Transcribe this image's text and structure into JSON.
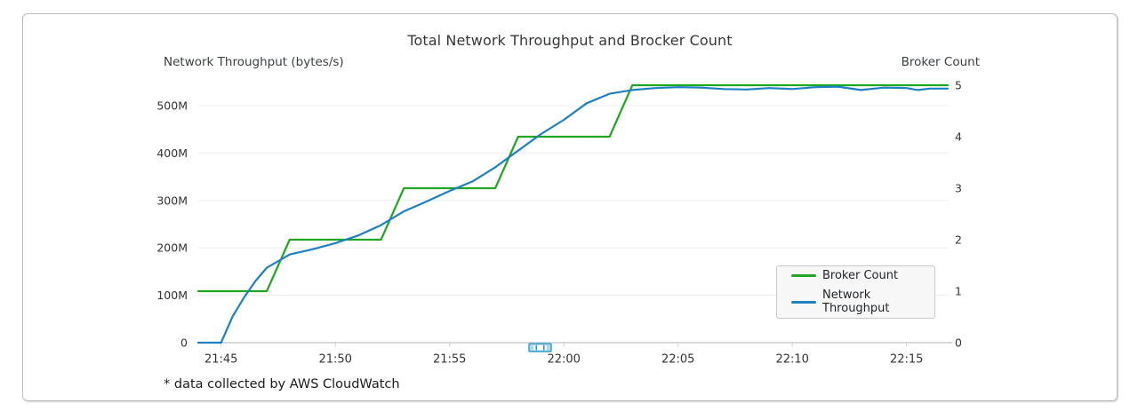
{
  "card": {
    "background": "#ffffff",
    "border_color": "#b6bcc0"
  },
  "chart_data": {
    "type": "line",
    "title": "Total Network Throughput and Brocker Count",
    "footnote": "* data collected by AWS CloudWatch",
    "left_axis": {
      "label": "Network Throughput (bytes/s)",
      "tick_labels": [
        "0",
        "100M",
        "200M",
        "300M",
        "400M",
        "500M"
      ],
      "tick_values_M": [
        0,
        100,
        200,
        300,
        400,
        500
      ],
      "range_M": [
        0,
        543
      ],
      "grid": true
    },
    "right_axis": {
      "label": "Broker Count",
      "tick_values": [
        0,
        1,
        2,
        3,
        4,
        5
      ],
      "range": [
        0,
        5
      ],
      "grid": false
    },
    "x_axis": {
      "tick_labels": [
        "21:45",
        "21:50",
        "21:55",
        "22:00",
        "22:05",
        "22:10",
        "22:15"
      ],
      "range": [
        "21:44:00",
        "22:16:48"
      ]
    },
    "legend": {
      "position": "inside-right"
    },
    "series": [
      {
        "name": "Broker Count",
        "color": "#21a621",
        "axis": "right",
        "shape": "step",
        "points": [
          [
            "21:44:00",
            1
          ],
          [
            "21:47:00",
            1
          ],
          [
            "21:48:00",
            2
          ],
          [
            "21:52:00",
            2
          ],
          [
            "21:53:00",
            3
          ],
          [
            "21:57:00",
            3
          ],
          [
            "21:58:00",
            4
          ],
          [
            "22:02:00",
            4
          ],
          [
            "22:03:00",
            5
          ],
          [
            "22:16:48",
            5
          ]
        ]
      },
      {
        "name": "Network Throughput",
        "color": "#1d80c3",
        "axis": "left",
        "unit": "M bytes/s",
        "points": [
          [
            "21:44:00",
            0
          ],
          [
            "21:45:00",
            0
          ],
          [
            "21:45:30",
            55
          ],
          [
            "21:46:00",
            95
          ],
          [
            "21:46:30",
            130
          ],
          [
            "21:47:00",
            158
          ],
          [
            "21:47:30",
            172
          ],
          [
            "21:48:00",
            186
          ],
          [
            "21:49:00",
            197
          ],
          [
            "21:50:00",
            210
          ],
          [
            "21:51:00",
            226
          ],
          [
            "21:52:00",
            248
          ],
          [
            "21:53:00",
            277
          ],
          [
            "21:54:00",
            298
          ],
          [
            "21:55:00",
            320
          ],
          [
            "21:56:00",
            340
          ],
          [
            "21:57:00",
            370
          ],
          [
            "21:58:00",
            405
          ],
          [
            "21:59:00",
            440
          ],
          [
            "22:00:00",
            470
          ],
          [
            "22:01:00",
            505
          ],
          [
            "22:02:00",
            525
          ],
          [
            "22:03:00",
            533
          ],
          [
            "22:04:00",
            537
          ],
          [
            "22:05:00",
            539
          ],
          [
            "22:06:00",
            538
          ],
          [
            "22:07:00",
            535
          ],
          [
            "22:08:00",
            534
          ],
          [
            "22:09:00",
            537
          ],
          [
            "22:10:00",
            535
          ],
          [
            "22:11:00",
            539
          ],
          [
            "22:12:00",
            540
          ],
          [
            "22:13:00",
            533
          ],
          [
            "22:14:00",
            538
          ],
          [
            "22:15:00",
            537
          ],
          [
            "22:15:30",
            533
          ],
          [
            "22:16:00",
            536
          ],
          [
            "22:16:48",
            536
          ]
        ]
      }
    ],
    "mini_slider": {
      "border_color": "#2e9ac9",
      "fill_color": "#aed9ec"
    },
    "colors": {
      "gridline": "#ececec",
      "axis_line": "#c9ced1",
      "tick_text": "#333333"
    }
  }
}
